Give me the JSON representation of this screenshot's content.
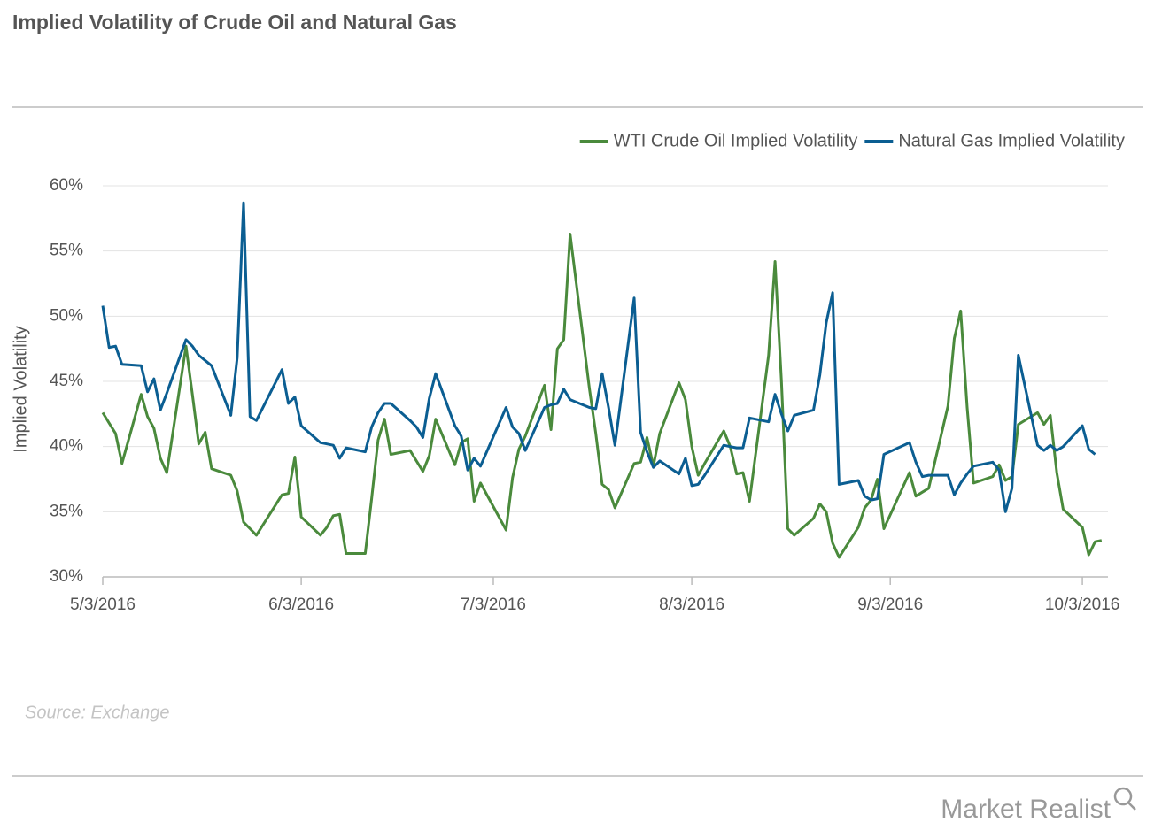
{
  "chart_data": {
    "type": "line",
    "title": "Implied Volatility of Crude Oil and Natural Gas",
    "y_label": "Implied Volatility",
    "source": "Source: Exchange",
    "brand": "Market Realist",
    "x": [
      "2016-05-03",
      "2016-05-04",
      "2016-05-05",
      "2016-05-06",
      "2016-05-09",
      "2016-05-10",
      "2016-05-11",
      "2016-05-12",
      "2016-05-13",
      "2016-05-16",
      "2016-05-17",
      "2016-05-18",
      "2016-05-19",
      "2016-05-20",
      "2016-05-23",
      "2016-05-24",
      "2016-05-25",
      "2016-05-26",
      "2016-05-27",
      "2016-05-31",
      "2016-06-01",
      "2016-06-02",
      "2016-06-03",
      "2016-06-06",
      "2016-06-07",
      "2016-06-08",
      "2016-06-09",
      "2016-06-10",
      "2016-06-13",
      "2016-06-14",
      "2016-06-15",
      "2016-06-16",
      "2016-06-17",
      "2016-06-20",
      "2016-06-21",
      "2016-06-22",
      "2016-06-23",
      "2016-06-24",
      "2016-06-27",
      "2016-06-28",
      "2016-06-29",
      "2016-06-30",
      "2016-07-01",
      "2016-07-05",
      "2016-07-06",
      "2016-07-07",
      "2016-07-08",
      "2016-07-11",
      "2016-07-12",
      "2016-07-13",
      "2016-07-14",
      "2016-07-15",
      "2016-07-18",
      "2016-07-19",
      "2016-07-20",
      "2016-07-21",
      "2016-07-22",
      "2016-07-25",
      "2016-07-26",
      "2016-07-27",
      "2016-07-28",
      "2016-07-29",
      "2016-08-01",
      "2016-08-02",
      "2016-08-03",
      "2016-08-04",
      "2016-08-05",
      "2016-08-08",
      "2016-08-09",
      "2016-08-10",
      "2016-08-11",
      "2016-08-12",
      "2016-08-15",
      "2016-08-16",
      "2016-08-17",
      "2016-08-18",
      "2016-08-19",
      "2016-08-22",
      "2016-08-23",
      "2016-08-24",
      "2016-08-25",
      "2016-08-26",
      "2016-08-29",
      "2016-08-30",
      "2016-08-31",
      "2016-09-01",
      "2016-09-02",
      "2016-09-06",
      "2016-09-07",
      "2016-09-08",
      "2016-09-09",
      "2016-09-12",
      "2016-09-13",
      "2016-09-14",
      "2016-09-15",
      "2016-09-16",
      "2016-09-19",
      "2016-09-20",
      "2016-09-21",
      "2016-09-22",
      "2016-09-23",
      "2016-09-26",
      "2016-09-27",
      "2016-09-28",
      "2016-09-29",
      "2016-09-30",
      "2016-10-03",
      "2016-10-04",
      "2016-10-05",
      "2016-10-06"
    ],
    "series": [
      {
        "name": "WTI Crude Oil Implied Volatility",
        "color": "#4a8a3c",
        "values": [
          42.6,
          41.8,
          41.0,
          38.7,
          44.0,
          42.3,
          41.4,
          39.1,
          38.0,
          47.7,
          44.0,
          40.2,
          41.1,
          38.3,
          37.8,
          36.6,
          34.2,
          33.7,
          33.2,
          36.3,
          36.4,
          39.2,
          34.6,
          33.2,
          33.8,
          34.7,
          34.8,
          31.8,
          31.8,
          36.0,
          40.5,
          42.1,
          39.4,
          39.7,
          38.9,
          38.1,
          39.3,
          42.1,
          38.6,
          40.3,
          40.6,
          35.8,
          37.2,
          33.6,
          37.6,
          39.8,
          40.8,
          44.7,
          41.3,
          47.5,
          48.2,
          56.3,
          44.5,
          41,
          37.1,
          36.7,
          35.3,
          38.7,
          38.8,
          40.7,
          38.5,
          41,
          44.9,
          43.6,
          40,
          37.8,
          38.7,
          41.2,
          40,
          37.9,
          38,
          35.8,
          47,
          54.2,
          45,
          33.7,
          33.2,
          34.5,
          35.6,
          35,
          32.6,
          31.5,
          33.8,
          35.3,
          35.9,
          37.5,
          33.7,
          38,
          36.2,
          36.5,
          36.8,
          43.1,
          48.3,
          50.4,
          43,
          37.2,
          37.7,
          38.6,
          37.4,
          37.7,
          41.7,
          42.6,
          41.7,
          42.4,
          38,
          35.2,
          33.8,
          31.7,
          32.7,
          32.8
        ]
      },
      {
        "name": "Natural Gas Implied Volatility",
        "color": "#0b5e92",
        "values": [
          50.8,
          47.6,
          47.7,
          46.3,
          46.2,
          44.2,
          45.2,
          42.8,
          44.1,
          48.2,
          47.7,
          47.0,
          46.6,
          46.2,
          42.4,
          46.8,
          58.7,
          42.3,
          42.0,
          45.9,
          43.3,
          43.8,
          41.6,
          40.3,
          40.2,
          40.1,
          39.1,
          39.9,
          39.6,
          41.5,
          42.6,
          43.3,
          43.3,
          42.0,
          41.5,
          40.7,
          43.7,
          45.6,
          41.6,
          40.8,
          38.2,
          39.1,
          38.5,
          43.0,
          41.5,
          41.0,
          39.7,
          43.0,
          43.2,
          43.3,
          44.4,
          43.6,
          43.0,
          42.9,
          45.6,
          43,
          40.1,
          51.4,
          41.1,
          39.6,
          38.4,
          38.9,
          37.9,
          39.1,
          37.0,
          37.1,
          37.8,
          40.1,
          40.0,
          39.9,
          39.9,
          42.2,
          41.9,
          44.0,
          42.5,
          41.2,
          42.4,
          42.8,
          45.5,
          49.5,
          51.8,
          37.1,
          37.4,
          36.2,
          35.9,
          36.0,
          39.4,
          40.3,
          38.8,
          37.7,
          37.8,
          37.8,
          36.3,
          37.2,
          37.9,
          38.5,
          38.8,
          38.2,
          35.0,
          36.8,
          47.0,
          40.1,
          39.7,
          40.1,
          39.7,
          40.0,
          41.6,
          39.8,
          39.4,
          null
        ]
      }
    ],
    "xlim": [
      "2016-05-03",
      "2016-10-07"
    ],
    "xticks": [
      {
        "value": "2016-05-03",
        "label": "5/3/2016"
      },
      {
        "value": "2016-06-03",
        "label": "6/3/2016"
      },
      {
        "value": "2016-07-03",
        "label": "7/3/2016"
      },
      {
        "value": "2016-08-03",
        "label": "8/3/2016"
      },
      {
        "value": "2016-09-03",
        "label": "9/3/2016"
      },
      {
        "value": "2016-10-03",
        "label": "10/3/2016"
      }
    ],
    "ylim": [
      30,
      60
    ],
    "yticks": [
      {
        "value": 30,
        "label": "30%"
      },
      {
        "value": 35,
        "label": "35%"
      },
      {
        "value": 40,
        "label": "40%"
      },
      {
        "value": 45,
        "label": "45%"
      },
      {
        "value": 50,
        "label": "50%"
      },
      {
        "value": 55,
        "label": "55%"
      },
      {
        "value": 60,
        "label": "60%"
      }
    ],
    "grid": true,
    "legend": "top-right"
  }
}
